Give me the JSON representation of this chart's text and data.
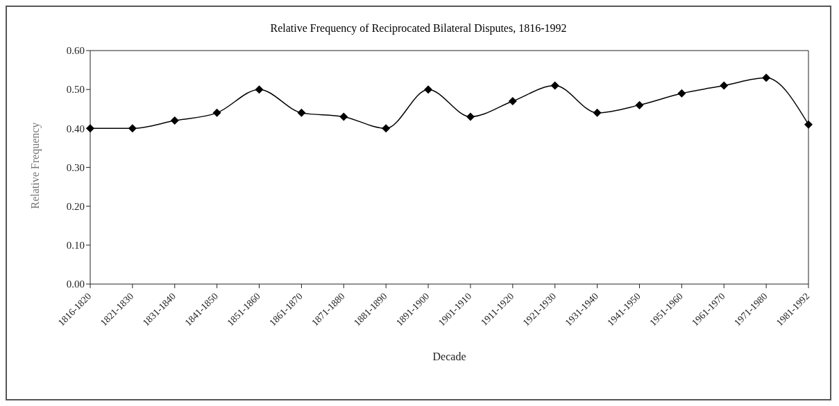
{
  "chart_data": {
    "type": "line",
    "title": "Relative Frequency of Reciprocated Bilateral Disputes, 1816-1992",
    "xlabel": "Decade",
    "ylabel": "Relative Frequency",
    "categories": [
      "1816-1820",
      "1821-1830",
      "1831-1840",
      "1841-1850",
      "1851-1860",
      "1861-1870",
      "1871-1880",
      "1881-1890",
      "1891-1900",
      "1901-1910",
      "1911-1920",
      "1921-1930",
      "1931-1940",
      "1941-1950",
      "1951-1960",
      "1961-1970",
      "1971-1980",
      "1981-1992"
    ],
    "series": [
      {
        "color": "#000000",
        "values": [
          0.4,
          0.4,
          0.42,
          0.44,
          0.5,
          0.44,
          0.43,
          0.4,
          0.5,
          0.43,
          0.47,
          0.51,
          0.44,
          0.46,
          0.49,
          0.51,
          0.53,
          0.41
        ]
      }
    ],
    "ylim": [
      0,
      0.6
    ],
    "yticks": [
      {
        "value": 0,
        "label": "0.00"
      },
      {
        "value": 0.1,
        "label": "0.10"
      },
      {
        "value": 0.2,
        "label": "0.20"
      },
      {
        "value": 0.3,
        "label": "0.30"
      },
      {
        "value": 0.4,
        "label": "0.40"
      },
      {
        "value": 0.5,
        "label": "0.50"
      },
      {
        "value": 0.6,
        "label": "0.60"
      }
    ],
    "grid": false,
    "legend": false,
    "marker": "diamond",
    "line_style": "solid"
  }
}
